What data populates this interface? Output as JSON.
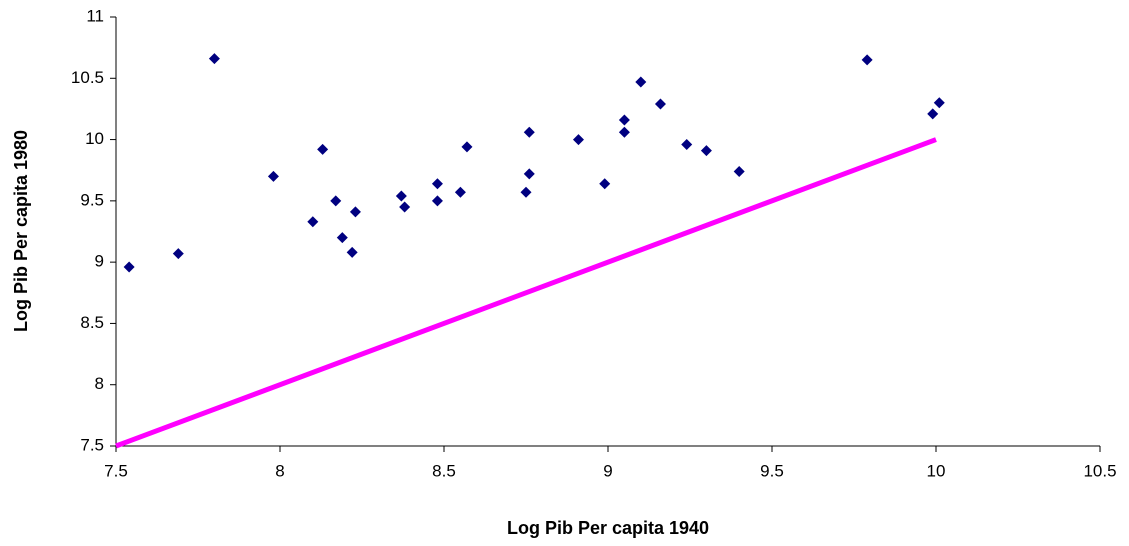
{
  "chart_data": {
    "type": "scatter",
    "x_label": "Log Pib Per capita 1940",
    "y_label": "Log Pib Per capita 1980",
    "xlim": [
      7.5,
      10.5
    ],
    "xticks": [
      7.5,
      8,
      8.5,
      9,
      9.5,
      10,
      10.5
    ],
    "ylim": [
      7.5,
      11
    ],
    "yticks": [
      7.5,
      8,
      8.5,
      9,
      9.5,
      10,
      10.5,
      11
    ],
    "grid": false,
    "series": [
      {
        "mode": "markers",
        "marker": "diamond",
        "color": "#000080",
        "x": [
          7.54,
          7.69,
          7.8,
          7.98,
          8.1,
          8.13,
          8.17,
          8.19,
          8.23,
          8.22,
          8.37,
          8.38,
          8.48,
          8.48,
          8.55,
          8.57,
          8.76,
          8.75,
          8.76,
          8.91,
          8.99,
          9.05,
          9.05,
          9.1,
          9.16,
          9.24,
          9.3,
          9.4,
          9.79,
          9.99,
          10.01
        ],
        "values": [
          8.96,
          9.07,
          10.66,
          9.7,
          9.33,
          9.92,
          9.5,
          9.2,
          9.41,
          9.08,
          9.54,
          9.45,
          9.64,
          9.5,
          9.57,
          9.94,
          10.06,
          9.57,
          9.72,
          10.0,
          9.64,
          10.16,
          10.06,
          10.47,
          10.29,
          9.96,
          9.91,
          9.74,
          10.65,
          10.21,
          10.3
        ]
      },
      {
        "mode": "line",
        "color": "#ff00ff",
        "x": [
          7.5,
          10
        ],
        "values": [
          7.5,
          10
        ]
      }
    ]
  }
}
